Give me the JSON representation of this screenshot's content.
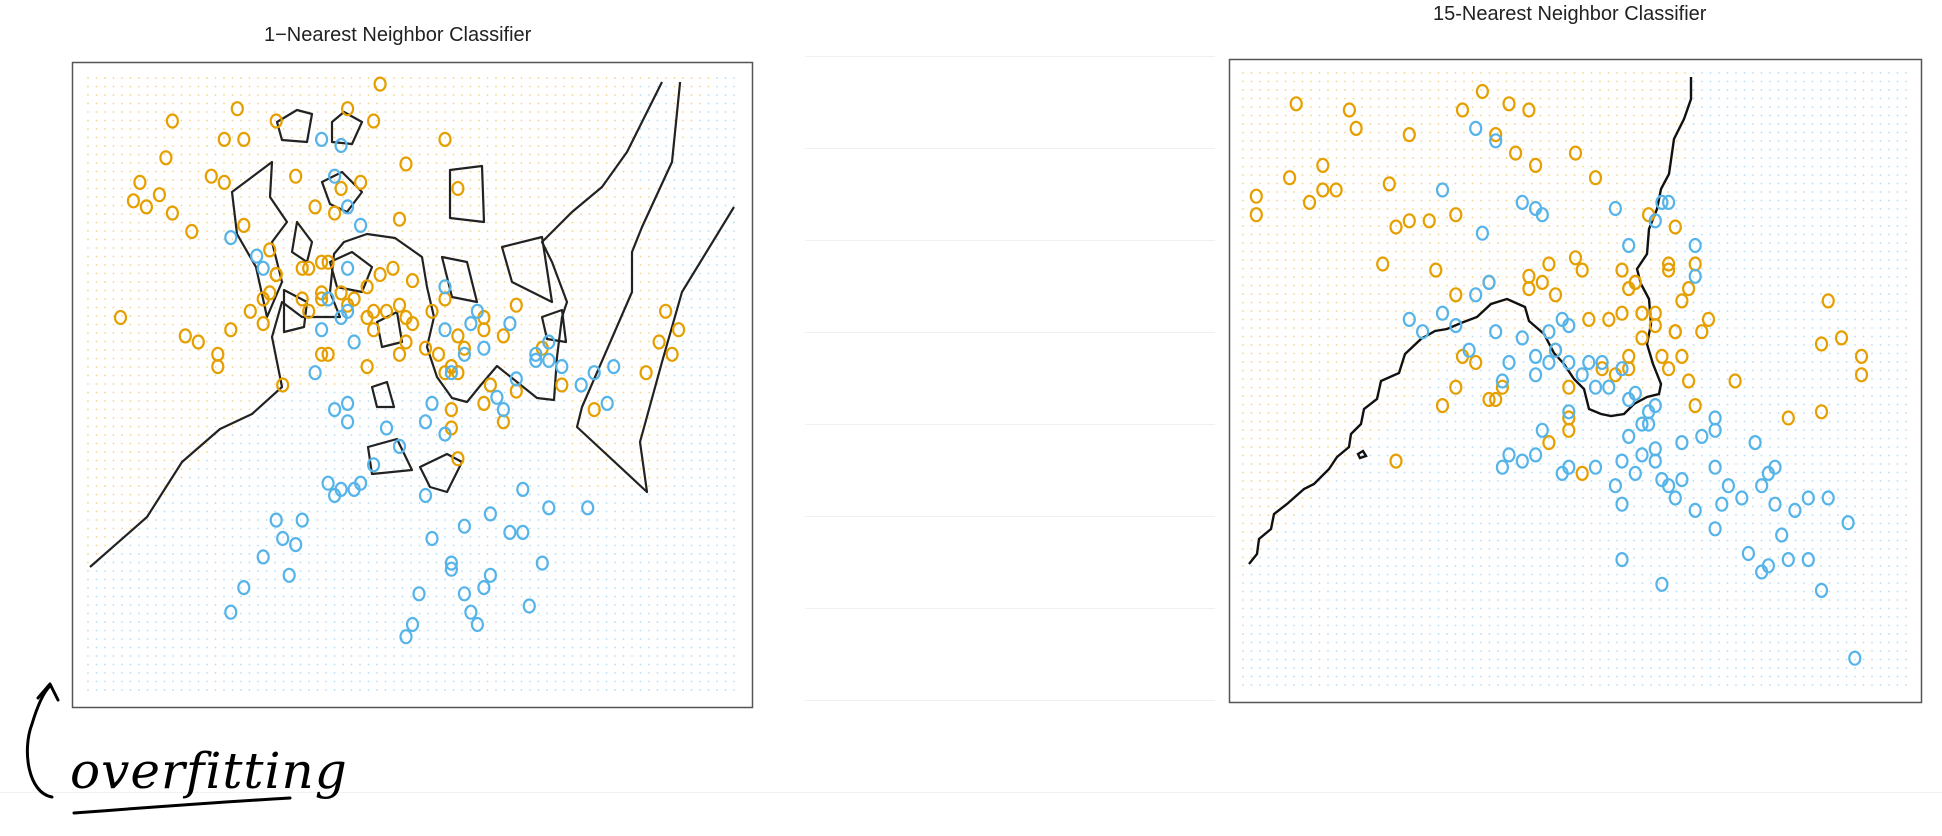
{
  "chart_data": [
    {
      "type": "scatter",
      "title": "1−Nearest Neighbor Classifier",
      "xlim": [
        0,
        100
      ],
      "ylim": [
        0,
        100
      ],
      "grid": false,
      "legend": "none",
      "series": [
        {
          "color": "#E69F00",
          "x": [
            13,
            23,
            24,
            29,
            40,
            44,
            45,
            32,
            49,
            55,
            57,
            8,
            7,
            9,
            13,
            16,
            11,
            12,
            19,
            21,
            21,
            24,
            28,
            35,
            39,
            42,
            38,
            48,
            45,
            47,
            50,
            34,
            36,
            37,
            29,
            33,
            36,
            41,
            43,
            43,
            46,
            49,
            48,
            55,
            61,
            64,
            17,
            25,
            29,
            28,
            33,
            36,
            39,
            20,
            20,
            27,
            27,
            34,
            36,
            37,
            40,
            44,
            44,
            43,
            48,
            49,
            50,
            53,
            54,
            57,
            57,
            58,
            61,
            66,
            70,
            66,
            73,
            5,
            30,
            15,
            22,
            52,
            56,
            62,
            56,
            61,
            56,
            55,
            64,
            57,
            78,
            86,
            88,
            90,
            91,
            89
          ],
          "y": [
            93,
            95,
            90,
            93,
            95,
            93,
            99,
            84,
            86,
            90,
            82,
            83,
            80,
            79,
            78,
            75,
            81,
            87,
            84,
            83,
            90,
            76,
            72,
            79,
            82,
            83,
            78,
            77,
            68,
            69,
            67,
            69,
            70,
            70,
            68,
            69,
            65,
            64,
            66,
            61,
            62,
            61,
            63,
            64,
            61,
            58,
            57,
            62,
            68,
            65,
            64,
            64,
            65,
            55,
            53,
            60,
            64,
            62,
            55,
            55,
            63,
            62,
            59,
            53,
            55,
            57,
            60,
            62,
            55,
            58,
            52,
            56,
            59,
            63,
            56,
            49,
            50,
            61,
            50,
            58,
            59,
            56,
            53,
            50,
            46,
            47,
            43,
            52,
            44,
            38,
            46,
            52,
            57,
            55,
            59,
            62
          ]
        },
        {
          "color": "#56B4E9",
          "x": [
            36,
            39,
            38,
            40,
            42,
            22,
            26,
            27,
            40,
            36,
            35,
            40,
            38,
            40,
            55,
            55,
            59,
            58,
            61,
            66,
            63,
            64,
            69,
            71,
            73,
            69,
            71,
            76,
            80,
            81,
            78,
            65,
            60,
            56,
            53,
            55,
            52,
            48,
            46,
            44,
            42,
            41,
            37,
            38,
            39,
            33,
            32,
            30,
            29,
            27,
            31,
            24,
            22,
            41,
            52,
            67,
            71,
            77,
            62,
            67,
            58,
            65,
            53,
            56,
            61,
            62,
            59,
            56,
            50,
            49,
            51,
            58,
            60,
            68,
            70,
            39,
            37,
            40
          ],
          "y": [
            90,
            89,
            84,
            79,
            76,
            74,
            71,
            69,
            69,
            59,
            52,
            47,
            46,
            44,
            66,
            59,
            60,
            55,
            56,
            51,
            48,
            46,
            54,
            54,
            53,
            55,
            57,
            50,
            47,
            53,
            52,
            60,
            62,
            52,
            47,
            42,
            44,
            40,
            43,
            37,
            34,
            33,
            34,
            32,
            33,
            28,
            24,
            25,
            28,
            22,
            19,
            17,
            13,
            57,
            32,
            33,
            30,
            30,
            29,
            26,
            27,
            26,
            25,
            21,
            17,
            19,
            13,
            20,
            11,
            9,
            16,
            16,
            11,
            14,
            21,
            61,
            64,
            62
          ]
        }
      ]
    },
    {
      "type": "scatter",
      "title": "15-Nearest Neighbor Classifier",
      "xlim": [
        0,
        100
      ],
      "ylim": [
        0,
        100
      ],
      "grid": false,
      "legend": "none",
      "series": [
        {
          "color": "#E69F00",
          "x": [
            8,
            16,
            17,
            25,
            33,
            36,
            40,
            43,
            38,
            44,
            41,
            50,
            53,
            2,
            7,
            10,
            12,
            14,
            22,
            25,
            28,
            21,
            29,
            32,
            37,
            43,
            46,
            51,
            55,
            59,
            62,
            57,
            60,
            58,
            65,
            70,
            69,
            66,
            67,
            60,
            63,
            54,
            56,
            58,
            59,
            64,
            65,
            61,
            64,
            68,
            65,
            47,
            49,
            49,
            52,
            46,
            49,
            39,
            38,
            37,
            32,
            30,
            33,
            23,
            35,
            43,
            45,
            47,
            50,
            57,
            58,
            60,
            62,
            64,
            66,
            67,
            68,
            51,
            74,
            88,
            87,
            93,
            90,
            93,
            87,
            82,
            2,
            12,
            23,
            32
          ],
          "y": [
            95,
            94,
            91,
            90,
            94,
            97,
            95,
            94,
            90,
            85,
            87,
            87,
            83,
            80,
            83,
            79,
            85,
            81,
            82,
            76,
            76,
            69,
            68,
            64,
            66,
            65,
            69,
            68,
            60,
            66,
            61,
            61,
            57,
            52,
            58,
            60,
            58,
            63,
            65,
            61,
            54,
            52,
            51,
            54,
            66,
            69,
            75,
            77,
            68,
            69,
            58,
            55,
            49,
            42,
            60,
            40,
            44,
            49,
            47,
            47,
            49,
            46,
            54,
            37,
            53,
            67,
            66,
            64,
            70,
            68,
            65,
            61,
            59,
            52,
            54,
            50,
            46,
            35,
            50,
            63,
            56,
            54,
            57,
            51,
            45,
            44,
            77,
            81,
            75,
            77
          ]
        },
        {
          "color": "#56B4E9",
          "x": [
            35,
            38,
            30,
            42,
            36,
            45,
            44,
            56,
            62,
            63,
            64,
            68,
            58,
            52,
            49,
            42,
            40,
            38,
            44,
            46,
            48,
            30,
            32,
            25,
            27,
            34,
            39,
            44,
            46,
            47,
            49,
            49,
            51,
            55,
            54,
            57,
            59,
            61,
            53,
            58,
            57,
            60,
            62,
            61,
            48,
            42,
            39,
            40,
            44,
            45,
            49,
            53,
            59,
            62,
            66,
            69,
            63,
            65,
            66,
            71,
            75,
            78,
            79,
            80,
            83,
            85,
            81,
            85,
            91,
            88,
            80,
            92,
            82,
            87,
            71,
            71,
            62,
            60,
            58,
            56,
            57,
            64,
            68,
            71,
            72,
            76,
            79,
            78,
            35,
            37,
            68,
            73,
            77,
            63,
            57
          ],
          "y": [
            91,
            89,
            81,
            79,
            74,
            77,
            78,
            78,
            76,
            79,
            79,
            72,
            72,
            53,
            59,
            57,
            53,
            58,
            54,
            58,
            60,
            61,
            59,
            60,
            58,
            55,
            50,
            51,
            53,
            55,
            53,
            45,
            51,
            49,
            53,
            52,
            48,
            43,
            49,
            47,
            37,
            38,
            39,
            45,
            35,
            37,
            36,
            38,
            38,
            42,
            36,
            36,
            35,
            37,
            40,
            41,
            34,
            31,
            34,
            36,
            31,
            33,
            35,
            36,
            29,
            31,
            25,
            21,
            27,
            31,
            30,
            5,
            21,
            16,
            44,
            42,
            46,
            43,
            41,
            33,
            30,
            33,
            29,
            26,
            30,
            22,
            20,
            19,
            64,
            66,
            67,
            33,
            40,
            17,
            21
          ]
        }
      ]
    }
  ],
  "annotation": {
    "text": "overfitting"
  }
}
